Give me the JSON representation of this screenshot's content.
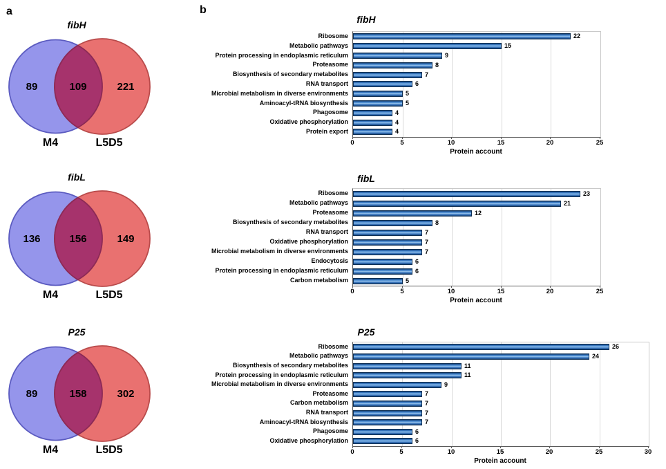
{
  "panels": {
    "a_label": "a",
    "b_label": "b"
  },
  "chart_data": [
    {
      "type": "venn",
      "title": "fibH",
      "sets": {
        "left_label": "M4",
        "right_label": "L5D5"
      },
      "left_only": 89,
      "overlap": 109,
      "right_only": 221,
      "colors": {
        "left_fill": "#9595EB",
        "left_stroke": "#5B5BC0",
        "right_fill": "#E97170",
        "right_stroke": "#B94B4B",
        "overlap_fill": "#A6336C",
        "overlap_stroke": "#8C2A56"
      }
    },
    {
      "type": "venn",
      "title": "fibL",
      "sets": {
        "left_label": "M4",
        "right_label": "L5D5"
      },
      "left_only": 136,
      "overlap": 156,
      "right_only": 149,
      "colors": {
        "left_fill": "#9595EB",
        "left_stroke": "#5B5BC0",
        "right_fill": "#E97170",
        "right_stroke": "#B94B4B",
        "overlap_fill": "#A6336C",
        "overlap_stroke": "#8C2A56"
      }
    },
    {
      "type": "venn",
      "title": "P25",
      "sets": {
        "left_label": "M4",
        "right_label": "L5D5"
      },
      "left_only": 89,
      "overlap": 158,
      "right_only": 302,
      "colors": {
        "left_fill": "#9595EB",
        "left_stroke": "#5B5BC0",
        "right_fill": "#E97170",
        "right_stroke": "#B94B4B",
        "overlap_fill": "#A6336C",
        "overlap_stroke": "#8C2A56"
      }
    },
    {
      "type": "bar",
      "orientation": "horizontal",
      "title": "fibH",
      "xlabel": "Protein account",
      "xlim": [
        0,
        25
      ],
      "xticks": [
        0,
        5,
        10,
        15,
        20,
        25
      ],
      "grid": true,
      "bar_color": "#2E75B6",
      "categories": [
        "Ribosome",
        "Metabolic pathways",
        "Protein processing in endoplasmic reticulum",
        "Proteasome",
        "Biosynthesis of secondary metabolites",
        "RNA transport",
        "Microbial metabolism in diverse environments",
        "Aminoacyl-tRNA biosynthesis",
        "Phagosome",
        "Oxidative phosphorylation",
        "Protein export"
      ],
      "values": [
        22,
        15,
        9,
        8,
        7,
        6,
        5,
        5,
        4,
        4,
        4
      ]
    },
    {
      "type": "bar",
      "orientation": "horizontal",
      "title": "fibL",
      "xlabel": "Protein account",
      "xlim": [
        0,
        25
      ],
      "xticks": [
        0,
        5,
        10,
        15,
        20,
        25
      ],
      "grid": true,
      "bar_color": "#2E75B6",
      "categories": [
        "Ribosome",
        "Metabolic pathways",
        "Proteasome",
        "Biosynthesis of secondary metabolites",
        "RNA transport",
        "Oxidative phosphorylation",
        "Microbial metabolism in diverse environments",
        "Endocytosis",
        "Protein processing in endoplasmic reticulum",
        "Carbon metabolism"
      ],
      "values": [
        23,
        21,
        12,
        8,
        7,
        7,
        7,
        6,
        6,
        5
      ]
    },
    {
      "type": "bar",
      "orientation": "horizontal",
      "title": "P25",
      "xlabel": "Protein account",
      "xlim": [
        0,
        30
      ],
      "xticks": [
        0,
        5,
        10,
        15,
        20,
        25,
        30
      ],
      "grid": true,
      "bar_color": "#2E75B6",
      "categories": [
        "Ribosome",
        "Metabolic pathways",
        "Biosynthesis of secondary metabolites",
        "Protein processing in endoplasmic reticulum",
        "Microbial metabolism in diverse environments",
        "Proteasome",
        "Carbon metabolism",
        "RNA transport",
        "Aminoacyl-tRNA biosynthesis",
        "Phagosome",
        "Oxidative phosphorylation"
      ],
      "values": [
        26,
        24,
        11,
        11,
        9,
        7,
        7,
        7,
        7,
        6,
        6
      ]
    }
  ]
}
